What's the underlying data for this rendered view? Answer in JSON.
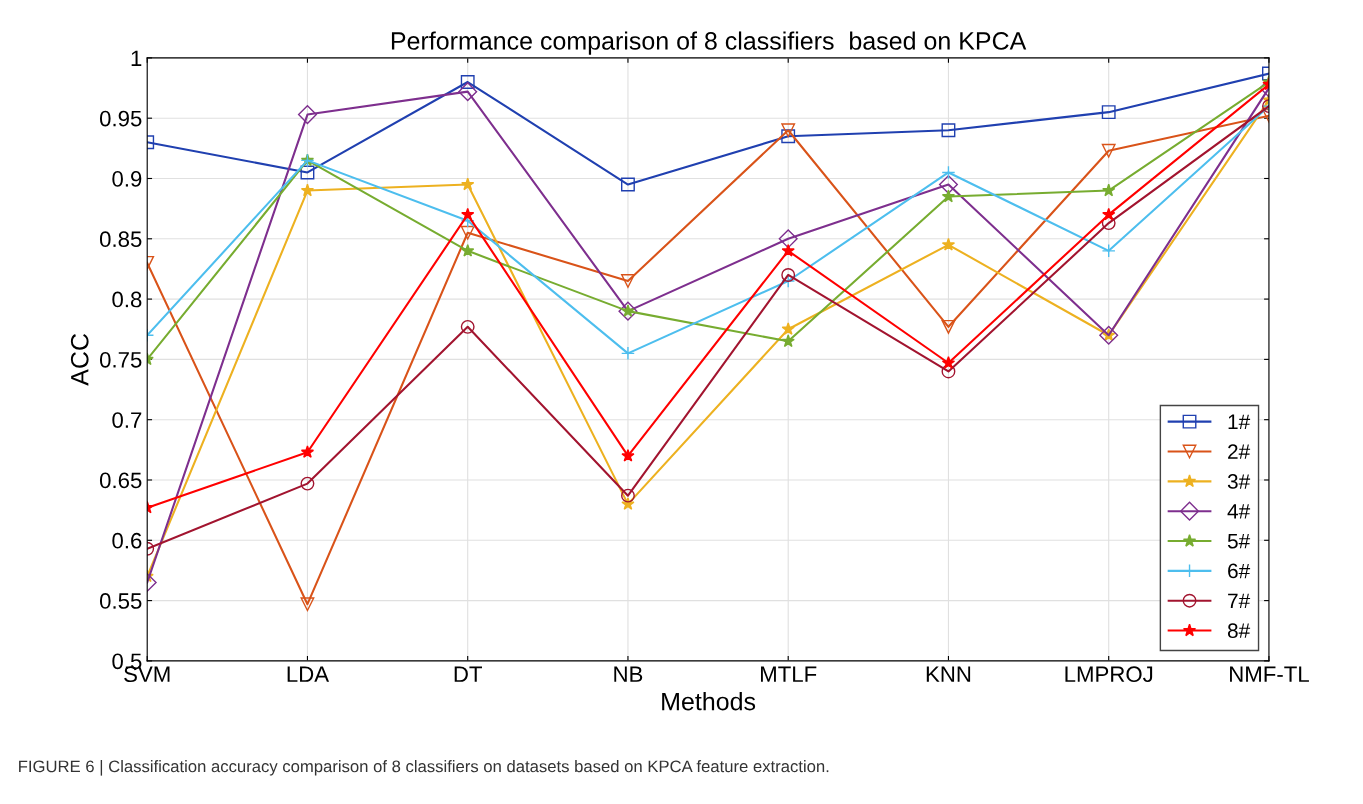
{
  "chart_data": {
    "type": "line",
    "title": "Performance comparison of 8 classifiers  based on KPCA",
    "xlabel": "Methods",
    "ylabel": "ACC",
    "categories": [
      "SVM",
      "LDA",
      "DT",
      "NB",
      "MTLF",
      "KNN",
      "LMPROJ",
      "NMF-TL"
    ],
    "series": [
      {
        "name": "1#",
        "color": "#2040b0",
        "marker": "square",
        "values": [
          0.93,
          0.905,
          0.98,
          0.895,
          0.935,
          0.94,
          0.955,
          0.987
        ]
      },
      {
        "name": "2#",
        "color": "#d95319",
        "marker": "triangle",
        "values": [
          0.83,
          0.547,
          0.855,
          0.815,
          0.94,
          0.777,
          0.923,
          0.952
        ]
      },
      {
        "name": "3#",
        "color": "#edb120",
        "marker": "star",
        "values": [
          0.57,
          0.89,
          0.895,
          0.63,
          0.775,
          0.845,
          0.77,
          0.965
        ]
      },
      {
        "name": "4#",
        "color": "#7e2f8e",
        "marker": "diamond",
        "values": [
          0.565,
          0.953,
          0.972,
          0.79,
          0.85,
          0.895,
          0.77,
          0.975
        ]
      },
      {
        "name": "5#",
        "color": "#77ac30",
        "marker": "star",
        "values": [
          0.75,
          0.915,
          0.84,
          0.79,
          0.765,
          0.885,
          0.89,
          0.98
        ]
      },
      {
        "name": "6#",
        "color": "#4dbeee",
        "marker": "cross",
        "values": [
          0.77,
          0.915,
          0.865,
          0.755,
          0.815,
          0.905,
          0.84,
          0.96
        ]
      },
      {
        "name": "7#",
        "color": "#a2142f",
        "marker": "circle",
        "values": [
          0.593,
          0.647,
          0.777,
          0.637,
          0.82,
          0.74,
          0.863,
          0.96
        ]
      },
      {
        "name": "8#",
        "color": "#ff0000",
        "marker": "star",
        "values": [
          0.627,
          0.673,
          0.87,
          0.67,
          0.84,
          0.747,
          0.87,
          0.978
        ]
      }
    ],
    "ylim": [
      0.5,
      1
    ],
    "yticks": [
      0.5,
      0.55,
      0.6,
      0.65,
      0.7,
      0.75,
      0.8,
      0.85,
      0.9,
      0.95,
      1
    ],
    "grid": true,
    "legend": "bottom right",
    "line_style": "solid",
    "annotations": [
      "FIGURE 6 | Classification accuracy comparison of 8 classifiers on datasets based on KPCA feature extraction."
    ]
  }
}
